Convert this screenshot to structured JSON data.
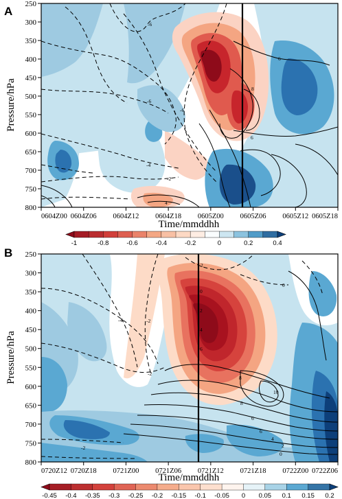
{
  "chart_data": [
    {
      "type": "heatmap",
      "panel": "A",
      "xlabel": "Time/mmddhh",
      "ylabel": "Pressure/hPa",
      "x_ticks": [
        "0604Z00",
        "0604Z06",
        "0604Z12",
        "0604Z18",
        "0605Z00",
        "0605Z06",
        "0605Z12",
        "0605Z18"
      ],
      "y_ticks": [
        "250",
        "300",
        "350",
        "400",
        "450",
        "500",
        "550",
        "600",
        "650",
        "700",
        "750",
        "800"
      ],
      "ylim": [
        800,
        250
      ],
      "vertical_line_at": "0605Z06",
      "colorbar_ticks": [
        "-1",
        "-0.8",
        "-0.6",
        "-0.4",
        "-0.2",
        "0",
        "0.2",
        "0.4"
      ],
      "colorbar_levels": [
        -1.0,
        -0.9,
        -0.8,
        -0.7,
        -0.6,
        -0.5,
        -0.4,
        -0.3,
        -0.2,
        -0.1,
        0.0,
        0.1,
        0.2,
        0.3,
        0.4
      ],
      "contour_labels": [
        "-6",
        "-6",
        "-6",
        "-4",
        "-2",
        "4",
        "6",
        "6",
        "8"
      ],
      "features": [
        {
          "name": "negative maximum",
          "x": "0605Z00",
          "pressure": 350,
          "value": -0.95
        },
        {
          "name": "negative lobe",
          "x": "0605Z06",
          "pressure": 450,
          "value": -0.7
        },
        {
          "name": "positive core",
          "x": "0605Z06",
          "pressure": 700,
          "value": 0.4
        },
        {
          "name": "positive core",
          "x": "0605Z18",
          "pressure": 420,
          "value": 0.35
        },
        {
          "name": "positive core",
          "x": "0604Z00",
          "pressure": 640,
          "value": 0.3
        },
        {
          "name": "negative near surface",
          "x": "0604Z18",
          "pressure": 790,
          "value": -0.45
        }
      ]
    },
    {
      "type": "heatmap",
      "panel": "B",
      "xlabel": "Time/mmddhh",
      "ylabel": "Pressure/hPa",
      "x_ticks": [
        "0720Z12",
        "0720Z18",
        "0721Z00",
        "0721Z06",
        "0721Z12",
        "0721Z18",
        "0722Z00",
        "0722Z06"
      ],
      "y_ticks": [
        "250",
        "300",
        "350",
        "400",
        "450",
        "500",
        "550",
        "600",
        "650",
        "700",
        "750",
        "800"
      ],
      "ylim": [
        800,
        250
      ],
      "vertical_line_at": "0721Z12",
      "colorbar_ticks": [
        "-0.45",
        "-0.4",
        "-0.35",
        "-0.3",
        "-0.25",
        "-0.2",
        "-0.15",
        "-0.1",
        "-0.05",
        "0",
        "0.05",
        "0.1",
        "0.15",
        "0.2"
      ],
      "colorbar_levels": [
        -0.45,
        -0.4,
        -0.35,
        -0.3,
        -0.25,
        -0.2,
        -0.15,
        -0.1,
        -0.05,
        0.0,
        0.05,
        0.1,
        0.15,
        0.2
      ],
      "contour_labels": [
        "-4",
        "-2",
        "-2",
        "-2",
        "2",
        "0",
        "2",
        "4",
        "6",
        "8",
        "6",
        "8",
        "10",
        "6",
        "4",
        "2",
        "0",
        "0"
      ],
      "features": [
        {
          "name": "negative maximum",
          "x": "0721Z15",
          "pressure": 410,
          "value": -0.45
        },
        {
          "name": "positive core",
          "x": "0722Z06",
          "pressure": 600,
          "value": 0.2
        },
        {
          "name": "positive region",
          "x": "0721Z00",
          "pressure": 460,
          "value": 0.1
        }
      ]
    }
  ],
  "colors": {
    "neg_strong": "#8e0b1a",
    "neg_mid": "#e05a4e",
    "neg_weak": "#fbd3c3",
    "neutral": "#ffffff",
    "pos_weak": "#c6e3ef",
    "pos_mid": "#5aa8d2",
    "pos_strong": "#0d3f7a"
  }
}
